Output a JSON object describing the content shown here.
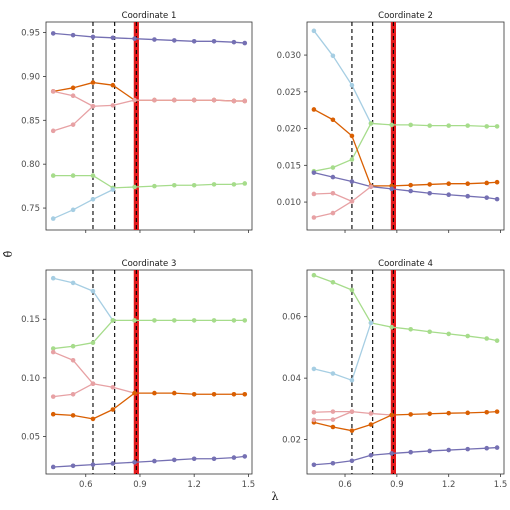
{
  "chart_data": {
    "type": "line",
    "xlabel": "λ",
    "ylabel": "θ̂",
    "xticks": [
      0.6,
      0.9,
      1.2,
      1.5
    ],
    "xlim": [
      0.38,
      1.52
    ],
    "x": [
      0.42,
      0.53,
      0.64,
      0.75,
      0.87,
      0.98,
      1.09,
      1.2,
      1.31,
      1.42,
      1.48
    ],
    "dashed_lines": [
      0.64,
      0.76
    ],
    "highlight_line": 0.88,
    "colors": {
      "purple": "#7570b3",
      "orange": "#d95f02",
      "pink": "#e7a1a4",
      "green": "#a6dc8b",
      "blue": "#a6cee3",
      "highlight": "#e41a1c"
    },
    "panels": [
      {
        "title": "Coordinate  1",
        "ylim": [
          0.725,
          0.962
        ],
        "yticks": [
          "0.75",
          "0.80",
          "0.85",
          "0.90",
          "0.95"
        ],
        "ytick_values": [
          0.75,
          0.8,
          0.85,
          0.9,
          0.95
        ],
        "series": [
          {
            "color": "purple",
            "values": [
              0.949,
              0.947,
              0.945,
              0.944,
              0.943,
              0.942,
              0.941,
              0.94,
              0.94,
              0.939,
              0.938
            ]
          },
          {
            "color": "orange",
            "values": [
              0.883,
              0.887,
              0.893,
              0.89,
              0.873,
              0.873,
              0.873,
              0.873,
              0.873,
              0.872,
              0.872
            ]
          },
          {
            "color": "pink",
            "values": [
              0.883,
              0.878,
              0.866,
              0.867,
              0.873,
              0.873,
              0.873,
              0.873,
              0.873,
              0.872,
              0.872
            ]
          },
          {
            "color": "pink",
            "values": [
              0.838,
              0.845,
              0.866
            ]
          },
          {
            "color": "green",
            "values": [
              0.787,
              0.787,
              0.787,
              0.773,
              0.774,
              0.775,
              0.776,
              0.776,
              0.777,
              0.777,
              0.778
            ]
          },
          {
            "color": "blue",
            "values": [
              0.738,
              0.748,
              0.76,
              0.771
            ]
          }
        ]
      },
      {
        "title": "Coordinate  2",
        "ylim": [
          0.0062,
          0.0345
        ],
        "yticks": [
          "0.010",
          "0.015",
          "0.020",
          "0.025",
          "0.030"
        ],
        "ytick_values": [
          0.01,
          0.015,
          0.02,
          0.025,
          0.03
        ],
        "series": [
          {
            "color": "blue",
            "values": [
              0.0333,
              0.0299,
              0.0259,
              0.0207
            ]
          },
          {
            "color": "green",
            "values": [
              0.0142,
              0.0147,
              0.0158,
              0.0207,
              0.0205,
              0.0205,
              0.0204,
              0.0204,
              0.0204,
              0.0203,
              0.0203
            ]
          },
          {
            "color": "orange",
            "values": [
              0.0226,
              0.0212,
              0.019,
              0.0122,
              0.0122,
              0.0123,
              0.0124,
              0.0125,
              0.0125,
              0.0126,
              0.0127
            ]
          },
          {
            "color": "purple",
            "values": [
              0.014,
              0.0134,
              0.0128,
              0.0121,
              0.0118,
              0.0115,
              0.0112,
              0.011,
              0.0108,
              0.0106,
              0.0104
            ]
          },
          {
            "color": "pink",
            "values": [
              0.0111,
              0.0112,
              0.0101,
              0.0121
            ]
          },
          {
            "color": "pink",
            "values": [
              0.0079,
              0.0085,
              0.0101
            ]
          }
        ]
      },
      {
        "title": "Coordinate  3",
        "ylim": [
          0.018,
          0.192
        ],
        "yticks": [
          "0.05",
          "0.10",
          "0.15"
        ],
        "ytick_values": [
          0.05,
          0.1,
          0.15
        ],
        "series": [
          {
            "color": "blue",
            "values": [
              0.185,
              0.181,
              0.174,
              0.149
            ]
          },
          {
            "color": "green",
            "values": [
              0.125,
              0.127,
              0.13,
              0.149,
              0.149,
              0.149,
              0.149,
              0.149,
              0.149,
              0.149,
              0.149
            ]
          },
          {
            "color": "pink",
            "values": [
              0.122,
              0.115,
              0.095,
              0.092,
              0.087
            ]
          },
          {
            "color": "pink",
            "values": [
              0.084,
              0.086,
              0.095
            ]
          },
          {
            "color": "orange",
            "values": [
              0.069,
              0.068,
              0.065,
              0.073,
              0.087,
              0.087,
              0.087,
              0.086,
              0.086,
              0.086,
              0.086
            ]
          },
          {
            "color": "purple",
            "values": [
              0.024,
              0.025,
              0.026,
              0.027,
              0.028,
              0.029,
              0.03,
              0.031,
              0.031,
              0.032,
              0.033
            ]
          }
        ]
      },
      {
        "title": "Coordinate  4",
        "ylim": [
          0.0088,
          0.0752
        ],
        "yticks": [
          "0.02",
          "0.04",
          "0.06"
        ],
        "ytick_values": [
          0.02,
          0.04,
          0.06
        ],
        "series": [
          {
            "color": "green",
            "values": [
              0.0735,
              0.0712,
              0.0687,
              0.058,
              0.0566,
              0.0559,
              0.0551,
              0.0544,
              0.0537,
              0.0529,
              0.0522
            ]
          },
          {
            "color": "blue",
            "values": [
              0.043,
              0.0415,
              0.0393,
              0.058
            ]
          },
          {
            "color": "pink",
            "values": [
              0.0289,
              0.0291,
              0.0291,
              0.0285,
              0.028
            ]
          },
          {
            "color": "orange",
            "values": [
              0.0256,
              0.0241,
              0.0229,
              0.0249,
              0.028,
              0.0282,
              0.0284,
              0.0286,
              0.0287,
              0.0289,
              0.0291
            ]
          },
          {
            "color": "pink",
            "values": [
              0.0264,
              0.0265,
              0.0291
            ]
          },
          {
            "color": "purple",
            "values": [
              0.0118,
              0.0123,
              0.0131,
              0.0149,
              0.0155,
              0.0159,
              0.0163,
              0.0166,
              0.0169,
              0.0172,
              0.0174
            ]
          }
        ]
      }
    ]
  }
}
